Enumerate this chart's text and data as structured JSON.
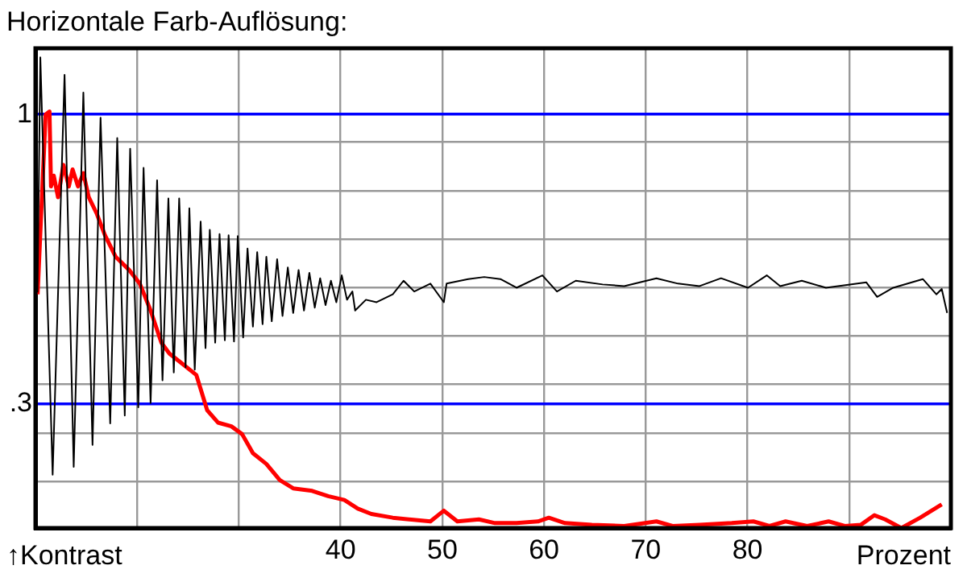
{
  "chart_data": {
    "type": "line",
    "title": "Horizontale Farb-Auflösung:",
    "xlabel": "Prozent",
    "ylabel": "↑Kontrast",
    "marker": "none",
    "grid": true,
    "xlim": [
      10,
      100
    ],
    "xticks": [
      {
        "value": 20,
        "label": null
      },
      {
        "value": 30,
        "label": null
      },
      40,
      50,
      60,
      70,
      80,
      {
        "value": 90,
        "label": null
      }
    ],
    "ylim": [
      0,
      1.16
    ],
    "yticks": [
      {
        "value": 0.113,
        "label": null
      },
      {
        "value": 0.23,
        "label": null
      },
      {
        "value": 0.3,
        "label": ".3"
      },
      {
        "value": 0.348,
        "label": null
      },
      {
        "value": 0.465,
        "label": null
      },
      {
        "value": 0.582,
        "label": null
      },
      {
        "value": 0.699,
        "label": null
      },
      {
        "value": 0.816,
        "label": null
      },
      {
        "value": 0.934,
        "label": null
      },
      1
    ],
    "series": [
      {
        "color": "#000000",
        "x": [
          10.2,
          10.48,
          11.69,
          12.86,
          13.76,
          14.71,
          15.61,
          16.4,
          17.35,
          18.04,
          18.78,
          19.31,
          20.11,
          20.63,
          21.32,
          21.96,
          22.49,
          23.07,
          23.6,
          24.13,
          24.76,
          25.13,
          25.66,
          26.24,
          26.72,
          27.14,
          27.67,
          28.1,
          28.62,
          28.99,
          29.52,
          29.89,
          30.42,
          30.85,
          31.38,
          31.8,
          32.33,
          32.7,
          33.23,
          33.76,
          34.29,
          34.81,
          35.34,
          35.87,
          36.4,
          36.93,
          37.46,
          37.99,
          38.52,
          39.05,
          39.58,
          40.11,
          40.63,
          41.16,
          41.43,
          42.49,
          43.54,
          44.6,
          45.13,
          46.19,
          47.24,
          48.83,
          50.15,
          50.42,
          52.54,
          54.12,
          55.71,
          57.3,
          59.84,
          61.27,
          63.12,
          65.76,
          67.88,
          71.05,
          73.17,
          75.29,
          77.4,
          80.05,
          81.9,
          83.22,
          85.34,
          87.72,
          91.69,
          92.75,
          94.33,
          97.24,
          98.57,
          99.1,
          99.63
        ],
        "values": [
          0.57,
          1.138,
          0.129,
          1.096,
          0.148,
          1.053,
          0.201,
          0.992,
          0.253,
          0.943,
          0.272,
          0.917,
          0.292,
          0.871,
          0.302,
          0.841,
          0.357,
          0.797,
          0.376,
          0.797,
          0.389,
          0.773,
          0.383,
          0.741,
          0.435,
          0.721,
          0.448,
          0.711,
          0.454,
          0.708,
          0.451,
          0.706,
          0.461,
          0.676,
          0.487,
          0.667,
          0.493,
          0.656,
          0.5,
          0.65,
          0.513,
          0.63,
          0.52,
          0.624,
          0.526,
          0.617,
          0.533,
          0.604,
          0.539,
          0.598,
          0.546,
          0.611,
          0.552,
          0.572,
          0.526,
          0.552,
          0.546,
          0.559,
          0.565,
          0.598,
          0.572,
          0.591,
          0.546,
          0.591,
          0.602,
          0.607,
          0.602,
          0.581,
          0.611,
          0.572,
          0.598,
          0.589,
          0.585,
          0.604,
          0.591,
          0.585,
          0.604,
          0.581,
          0.611,
          0.585,
          0.598,
          0.581,
          0.594,
          0.559,
          0.581,
          0.602,
          0.565,
          0.578,
          0.52
        ]
      },
      {
        "color": "#ff0000",
        "x": [
          10.21,
          11.0,
          11.38,
          11.53,
          11.8,
          12.22,
          12.75,
          13.28,
          13.65,
          14.18,
          14.71,
          15.24,
          16.03,
          16.83,
          17.88,
          19.21,
          20.26,
          21.32,
          22.38,
          23.17,
          24.5,
          25.82,
          26.88,
          27.94,
          29.26,
          30.32,
          31.38,
          32.7,
          34.02,
          35.34,
          37.2,
          38.78,
          40.37,
          41.69,
          43.02,
          45.13,
          48.83,
          50.15,
          51.48,
          53.6,
          55.18,
          57.3,
          59.41,
          60.47,
          62.06,
          64.7,
          67.88,
          71.05,
          72.64,
          75.29,
          78.46,
          80.58,
          82.16,
          83.75,
          85.87,
          87.98,
          89.57,
          91.16,
          92.48,
          93.54,
          95.13,
          96.98,
          99.1
        ],
        "values": [
          0.565,
          1.0,
          1.007,
          0.826,
          0.852,
          0.8,
          0.878,
          0.826,
          0.867,
          0.826,
          0.858,
          0.8,
          0.76,
          0.708,
          0.656,
          0.624,
          0.591,
          0.526,
          0.448,
          0.422,
          0.396,
          0.37,
          0.285,
          0.255,
          0.246,
          0.227,
          0.181,
          0.155,
          0.116,
          0.096,
          0.09,
          0.077,
          0.068,
          0.047,
          0.034,
          0.025,
          0.016,
          0.042,
          0.016,
          0.021,
          0.012,
          0.012,
          0.016,
          0.025,
          0.012,
          0.008,
          0.005,
          0.016,
          0.005,
          0.008,
          0.012,
          0.016,
          0.005,
          0.016,
          0.005,
          0.016,
          0.005,
          0.008,
          0.031,
          0.021,
          0.0,
          0.025,
          0.057
        ]
      }
    ]
  }
}
